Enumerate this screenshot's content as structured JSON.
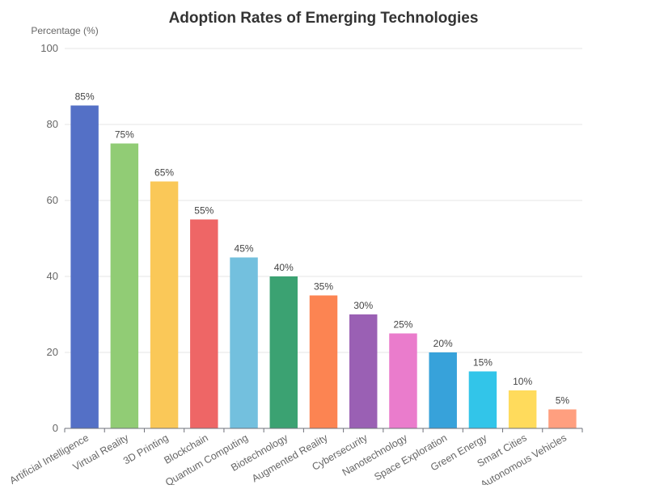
{
  "chart_data": {
    "type": "bar",
    "title": "Adoption Rates of Emerging Technologies",
    "xlabel": "",
    "ylabel": "Percentage (%)",
    "ylim": [
      0,
      100
    ],
    "yticks": [
      0,
      20,
      40,
      60,
      80,
      100
    ],
    "grid": true,
    "legend": "none",
    "value_suffix": "%",
    "categories": [
      "Artificial Intelligence",
      "Virtual Reality",
      "3D Printing",
      "Blockchain",
      "Quantum Computing",
      "Biotechnology",
      "Augmented Reality",
      "Cybersecurity",
      "Nanotechnology",
      "Space Exploration",
      "Green Energy",
      "Smart Cities",
      "Autonomous Vehicles"
    ],
    "values": [
      85,
      75,
      65,
      55,
      45,
      40,
      35,
      30,
      25,
      20,
      15,
      10,
      5
    ],
    "colors": [
      "#5470c6",
      "#91cc75",
      "#fac858",
      "#ee6666",
      "#73c0de",
      "#3ba272",
      "#fc8452",
      "#9a60b4",
      "#ea7ccc",
      "#37a2da",
      "#32c5e9",
      "#ffdb5c",
      "#ff9f7f"
    ]
  }
}
